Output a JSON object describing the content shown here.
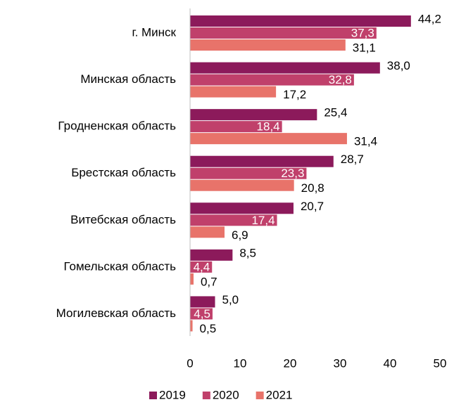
{
  "chart_data": {
    "type": "hbar",
    "categories": [
      "г. Минск",
      "Минская область",
      "Гродненская область",
      "Брестская область",
      "Витебская область",
      "Гомельская область",
      "Могилевская область"
    ],
    "series": [
      {
        "name": "2019",
        "color": "#8c1a5b",
        "values": [
          44.2,
          38.0,
          25.4,
          28.7,
          20.7,
          8.5,
          5.0
        ],
        "value_labels": [
          "44,2",
          "38,0",
          "25,4",
          "28,7",
          "20,7",
          "8,5",
          "5,0"
        ]
      },
      {
        "name": "2020",
        "color": "#c0406b",
        "values": [
          37.3,
          32.8,
          18.4,
          23.3,
          17.4,
          4.4,
          4.5
        ],
        "value_labels": [
          "37,3",
          "32,8",
          "18,4",
          "23,3",
          "17,4",
          "4,4",
          "4,5"
        ]
      },
      {
        "name": "2021",
        "color": "#e8736a",
        "values": [
          31.1,
          17.2,
          31.4,
          20.8,
          6.9,
          0.7,
          0.5
        ],
        "value_labels": [
          "31,1",
          "17,2",
          "31,4",
          "20,8",
          "6,9",
          "0,7",
          "0,5"
        ]
      }
    ],
    "xlim": [
      0,
      50
    ],
    "xticks": [
      0,
      10,
      20,
      30,
      40,
      50
    ],
    "legend": "bottom"
  }
}
